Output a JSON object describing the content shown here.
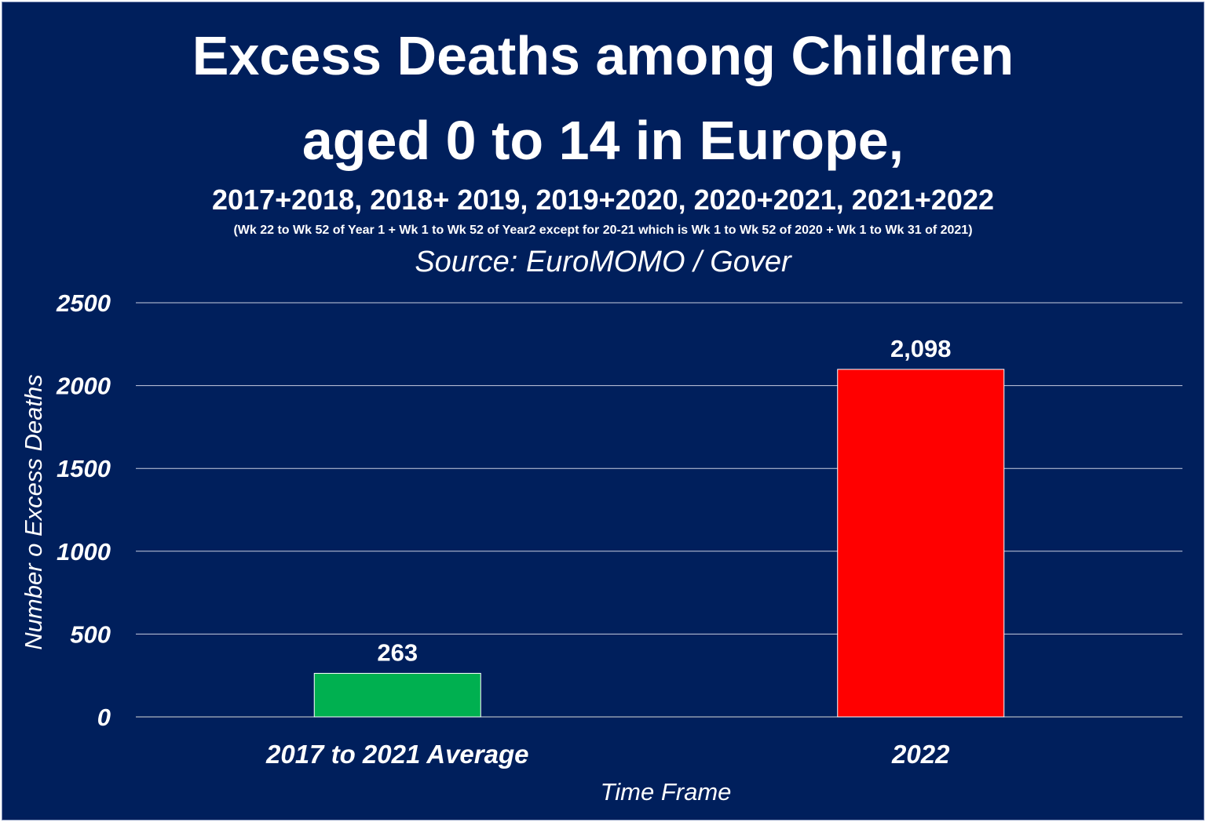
{
  "chart_data": {
    "type": "bar",
    "title_line1": "Excess Deaths among Children",
    "title_line2": "aged 0 to 14 in Europe,",
    "subtitle": "2017+2018, 2018+ 2019, 2019+2020, 2020+2021, 2021+2022",
    "note": "(Wk 22 to Wk 52 of Year 1 + Wk 1 to Wk 52 of Year2 except for 20-21 which is Wk 1 to Wk 52 of 2020 + Wk 1 to Wk 31 of 2021)",
    "source": "Source: EuroMOMO / Gover",
    "categories": [
      "2017 to 2021 Average",
      "2022"
    ],
    "values": [
      263,
      2098
    ],
    "data_labels": [
      "263",
      "2,098"
    ],
    "bar_colors": [
      "#00b050",
      "#ff0000"
    ],
    "xlabel": "Time Frame",
    "ylabel": "Number o Excess Deaths",
    "ylim": [
      0,
      2500
    ],
    "yticks": [
      0,
      500,
      1000,
      1500,
      2000,
      2500
    ],
    "grid": true,
    "legend": "none",
    "background_color": "#001f5c",
    "text_color": "#ffffff"
  }
}
